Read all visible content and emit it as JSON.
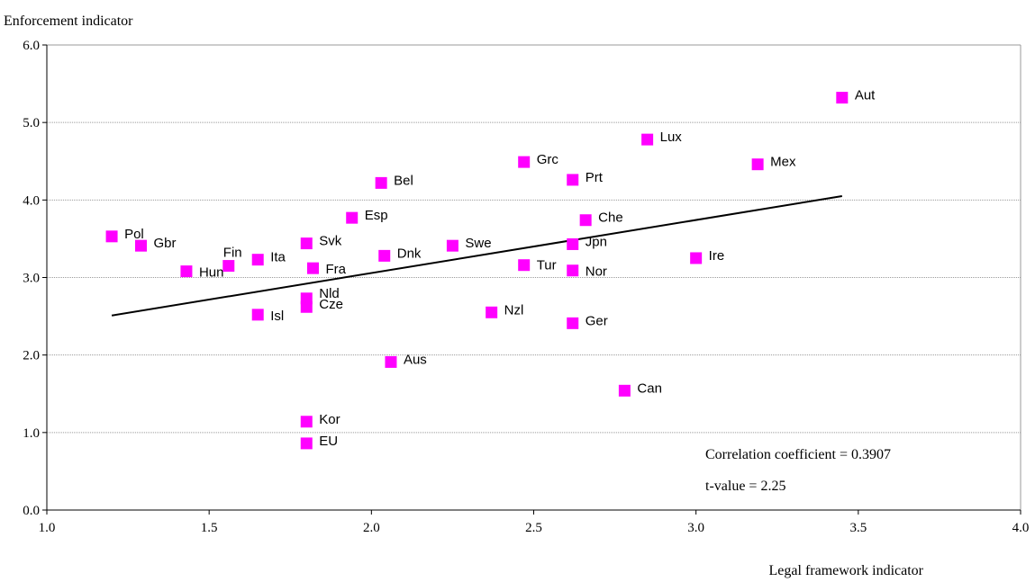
{
  "chart_data": {
    "type": "scatter",
    "ylabel": "Enforcement indicator",
    "xlabel": "Legal framework indicator",
    "xlim": [
      1.0,
      4.0
    ],
    "ylim": [
      0.0,
      6.0
    ],
    "x_ticks": [
      "1.0",
      "1.5",
      "2.0",
      "2.5",
      "3.0",
      "3.5",
      "4.0"
    ],
    "y_ticks": [
      "0.0",
      "1.0",
      "2.0",
      "3.0",
      "4.0",
      "5.0",
      "6.0"
    ],
    "grid": "horizontal",
    "marker_color": "#ff00ff",
    "points": [
      {
        "label": "Pol",
        "x": 1.2,
        "y": 3.53
      },
      {
        "label": "Gbr",
        "x": 1.29,
        "y": 3.41
      },
      {
        "label": "Hun",
        "x": 1.43,
        "y": 3.08
      },
      {
        "label": "Fin",
        "x": 1.56,
        "y": 3.15
      },
      {
        "label": "Ita",
        "x": 1.65,
        "y": 3.23
      },
      {
        "label": "Isl",
        "x": 1.65,
        "y": 2.52
      },
      {
        "label": "Svk",
        "x": 1.8,
        "y": 3.44
      },
      {
        "label": "Fra",
        "x": 1.82,
        "y": 3.12
      },
      {
        "label": "Nld",
        "x": 1.8,
        "y": 2.73
      },
      {
        "label": "Cze",
        "x": 1.8,
        "y": 2.62
      },
      {
        "label": "Kor",
        "x": 1.8,
        "y": 1.14
      },
      {
        "label": "EU",
        "x": 1.8,
        "y": 0.86
      },
      {
        "label": "Esp",
        "x": 1.94,
        "y": 3.77
      },
      {
        "label": "Bel",
        "x": 2.03,
        "y": 4.22
      },
      {
        "label": "Dnk",
        "x": 2.04,
        "y": 3.28
      },
      {
        "label": "Aus",
        "x": 2.06,
        "y": 1.91
      },
      {
        "label": "Swe",
        "x": 2.25,
        "y": 3.41
      },
      {
        "label": "Nzl",
        "x": 2.37,
        "y": 2.55
      },
      {
        "label": "Grc",
        "x": 2.47,
        "y": 4.49
      },
      {
        "label": "Tur",
        "x": 2.47,
        "y": 3.16
      },
      {
        "label": "Prt",
        "x": 2.62,
        "y": 4.26
      },
      {
        "label": "Jpn",
        "x": 2.62,
        "y": 3.43
      },
      {
        "label": "Nor",
        "x": 2.62,
        "y": 3.09
      },
      {
        "label": "Ger",
        "x": 2.62,
        "y": 2.41
      },
      {
        "label": "Che",
        "x": 2.66,
        "y": 3.74
      },
      {
        "label": "Can",
        "x": 2.78,
        "y": 1.54
      },
      {
        "label": "Lux",
        "x": 2.85,
        "y": 4.78
      },
      {
        "label": "Ire",
        "x": 3.0,
        "y": 3.25
      },
      {
        "label": "Mex",
        "x": 3.19,
        "y": 4.46
      },
      {
        "label": "Aut",
        "x": 3.45,
        "y": 5.32
      }
    ],
    "trendline": {
      "x": [
        1.2,
        3.45
      ],
      "y": [
        2.51,
        4.05
      ]
    },
    "annotations": [
      "Correlation coefficient = 0.3907",
      "t-value = 2.25"
    ]
  }
}
